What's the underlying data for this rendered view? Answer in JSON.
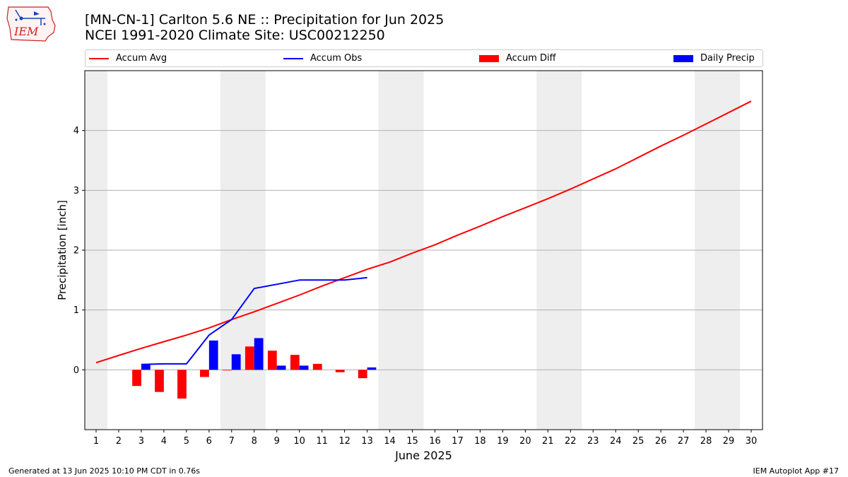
{
  "header": {
    "title_line1": "[MN-CN-1] Carlton 5.6 NE :: Precipitation for Jun 2025",
    "title_line2": "NCEI 1991-2020 Climate Site: USC00212250",
    "logo_text": "IEM"
  },
  "footer": {
    "generated": "Generated at 13 Jun 2025 10:10 PM CDT in 0.76s",
    "app": "IEM Autoplot App #17"
  },
  "colors": {
    "avg": "#ff0000",
    "obs": "#0000ff",
    "diff": "#ff0000",
    "daily": "#0000ff",
    "weekend_shade": "#eeeeee",
    "grid": "#b0b0b0"
  },
  "chart_data": {
    "type": "bar",
    "xlabel": "June 2025",
    "ylabel": "Precipitation [inch]",
    "xlim": [
      0.5,
      30.5
    ],
    "ylim": [
      -1.0,
      5.0
    ],
    "yticks": [
      0,
      1,
      2,
      3,
      4
    ],
    "grid": "horizontal",
    "legend_position": "top",
    "x": [
      1,
      2,
      3,
      4,
      5,
      6,
      7,
      8,
      9,
      10,
      11,
      12,
      13,
      14,
      15,
      16,
      17,
      18,
      19,
      20,
      21,
      22,
      23,
      24,
      25,
      26,
      27,
      28,
      29,
      30
    ],
    "shaded_days": [
      1,
      7,
      8,
      14,
      15,
      21,
      22,
      28,
      29
    ],
    "series": [
      {
        "name": "Accum Avg",
        "kind": "line",
        "x": [
          1,
          2,
          3,
          4,
          5,
          6,
          7,
          8,
          9,
          10,
          11,
          12,
          13,
          14,
          15,
          16,
          17,
          18,
          19,
          20,
          21,
          22,
          23,
          24,
          25,
          26,
          27,
          28,
          29,
          30
        ],
        "values": [
          0.12,
          0.24,
          0.36,
          0.47,
          0.58,
          0.7,
          0.84,
          0.97,
          1.11,
          1.25,
          1.4,
          1.54,
          1.68,
          1.8,
          1.95,
          2.09,
          2.25,
          2.4,
          2.56,
          2.71,
          2.86,
          3.02,
          3.19,
          3.36,
          3.55,
          3.74,
          3.92,
          4.11,
          4.3,
          4.49
        ]
      },
      {
        "name": "Accum Obs",
        "kind": "line",
        "x": [
          3,
          4,
          5,
          6,
          7,
          8,
          9,
          10,
          11,
          12,
          13
        ],
        "values": [
          0.09,
          0.1,
          0.1,
          0.58,
          0.84,
          1.36,
          1.43,
          1.5,
          1.5,
          1.5,
          1.54
        ]
      },
      {
        "name": "Accum Diff",
        "kind": "bar",
        "x": [
          3,
          4,
          5,
          6,
          7,
          8,
          9,
          10,
          11,
          12,
          13
        ],
        "values": [
          -0.27,
          -0.37,
          -0.48,
          -0.12,
          -0.01,
          0.39,
          0.32,
          0.25,
          0.1,
          -0.04,
          -0.14
        ]
      },
      {
        "name": "Daily Precip",
        "kind": "bar",
        "x": [
          3,
          4,
          5,
          6,
          7,
          8,
          9,
          10,
          11,
          12,
          13
        ],
        "values": [
          0.09,
          0.0,
          0.0,
          0.49,
          0.26,
          0.53,
          0.07,
          0.07,
          0.0,
          0.0,
          0.04
        ]
      }
    ]
  }
}
